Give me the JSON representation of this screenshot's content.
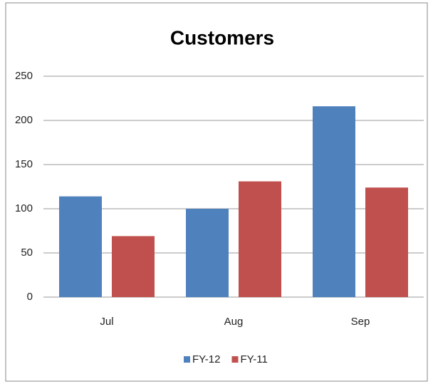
{
  "chart_data": {
    "type": "bar",
    "title": "Customers",
    "categories": [
      "Jul",
      "Aug",
      "Sep"
    ],
    "series": [
      {
        "name": "FY-12",
        "color": "#4f81bd",
        "values": [
          114,
          100,
          216
        ]
      },
      {
        "name": "FY-11",
        "color": "#c0504d",
        "values": [
          69,
          131,
          124
        ]
      }
    ],
    "ylim": [
      0,
      250
    ],
    "yticks": [
      0,
      50,
      100,
      150,
      200,
      250
    ],
    "grid": true,
    "legend": "bottom"
  }
}
